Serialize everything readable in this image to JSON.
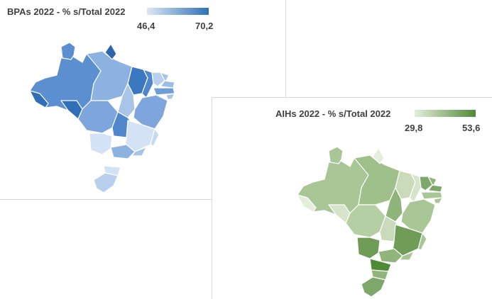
{
  "bpa": {
    "title": "BPAs 2022 - % s/Total 2022",
    "legend_min": "46,4",
    "legend_max": "70,2",
    "color_low": "#dbe8f7",
    "color_high": "#2e6fb6"
  },
  "aih": {
    "title": "AIHs 2022 - % s/Total 2022",
    "legend_min": "29,8",
    "legend_max": "53,6",
    "color_low": "#e4eedc",
    "color_high": "#4f8a37"
  }
}
